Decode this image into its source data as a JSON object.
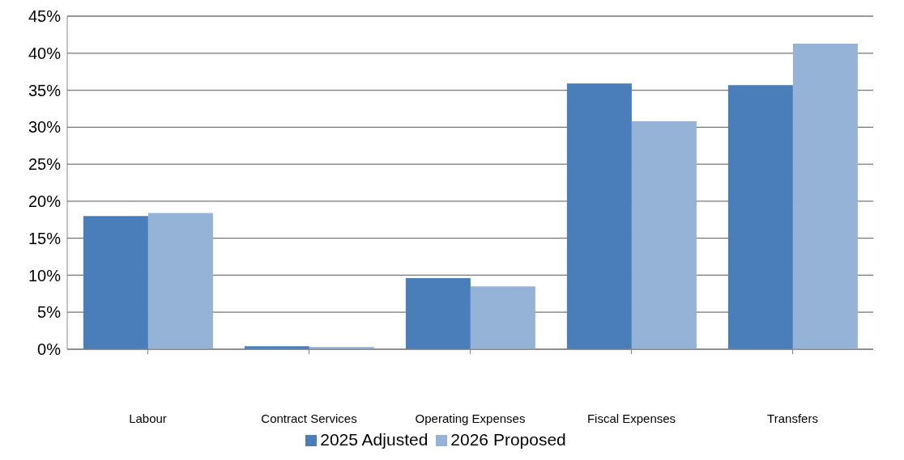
{
  "chart_data": {
    "type": "bar",
    "categories": [
      "Labour",
      "Contract Services",
      "Operating Expenses",
      "Fiscal Expenses",
      "Transfers"
    ],
    "series": [
      {
        "name": "2025 Adjusted",
        "color": "#4a7ebb",
        "values": [
          18,
          0.4,
          9.6,
          35.9,
          35.7
        ]
      },
      {
        "name": "2026 Proposed",
        "color": "#95b3d7",
        "values": [
          18.4,
          0.3,
          8.5,
          30.8,
          41.3
        ]
      }
    ],
    "ylim": [
      0,
      45
    ],
    "yticks": [
      {
        "value": 0,
        "label": "0%"
      },
      {
        "value": 5,
        "label": "5%"
      },
      {
        "value": 10,
        "label": "10%"
      },
      {
        "value": 15,
        "label": "15%"
      },
      {
        "value": 20,
        "label": "20%"
      },
      {
        "value": 25,
        "label": "25%"
      },
      {
        "value": 30,
        "label": "30%"
      },
      {
        "value": 35,
        "label": "35%"
      },
      {
        "value": 40,
        "label": "40%"
      },
      {
        "value": 45,
        "label": "45%"
      }
    ],
    "grid": "y",
    "legend": "bottom"
  }
}
